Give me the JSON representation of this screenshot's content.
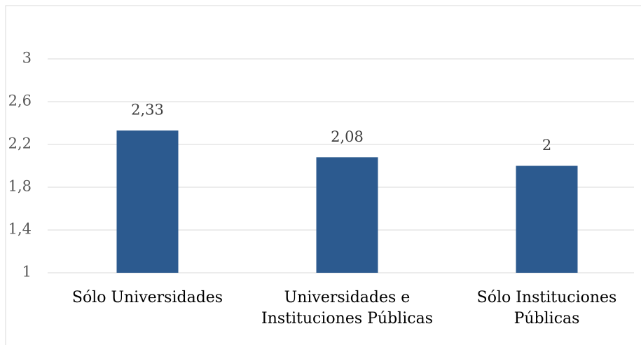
{
  "chart_data": {
    "type": "bar",
    "categories": [
      "Sólo Universidades",
      "Universidades e Instituciones Públicas",
      "Sólo Instituciones Públicas"
    ],
    "values": [
      2.33,
      2.08,
      2
    ],
    "value_labels": [
      "2,33",
      "2,08",
      "2"
    ],
    "color": "#2c5a8f",
    "ylim": [
      1,
      3
    ],
    "yticks": [
      1,
      {
        "value": 1.4,
        "label": "1,4"
      },
      {
        "value": 1.8,
        "label": "1,8"
      },
      {
        "value": 2.2,
        "label": "2,2"
      },
      {
        "value": 2.6,
        "label": "2,6"
      },
      3
    ],
    "grid": true
  }
}
